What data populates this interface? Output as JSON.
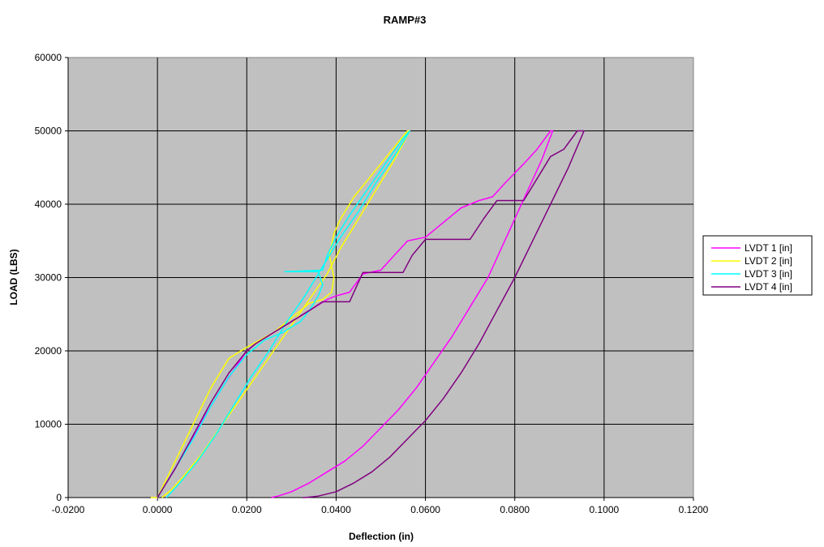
{
  "chart_data": {
    "type": "line",
    "title": "RAMP#3",
    "xlabel": "Deflection (in)",
    "ylabel": "LOAD (LBS)",
    "xlim": [
      -0.02,
      0.12
    ],
    "ylim": [
      0,
      60000
    ],
    "x_ticks": [
      "-0.0200",
      "0.0000",
      "0.0200",
      "0.0400",
      "0.0600",
      "0.0800",
      "0.1000",
      "0.1200"
    ],
    "x_tick_values": [
      -0.02,
      0,
      0.02,
      0.04,
      0.06,
      0.08,
      0.1,
      0.12
    ],
    "y_ticks": [
      "0",
      "10000",
      "20000",
      "30000",
      "40000",
      "50000",
      "60000"
    ],
    "y_tick_values": [
      0,
      10000,
      20000,
      30000,
      40000,
      50000,
      60000
    ],
    "grid": true,
    "plot_background": "#c0c0c0",
    "legend_position": "right",
    "series": [
      {
        "name": "LVDT 1 [in]",
        "color": "#ff00ff",
        "x": [
          0.0,
          0.005,
          0.01,
          0.015,
          0.02,
          0.022,
          0.026,
          0.03,
          0.034,
          0.038,
          0.04,
          0.043,
          0.046,
          0.05,
          0.053,
          0.056,
          0.06,
          0.064,
          0.068,
          0.072,
          0.075,
          0.078,
          0.082,
          0.085,
          0.088,
          0.0885,
          0.086,
          0.083,
          0.08,
          0.077,
          0.074,
          0.07,
          0.066,
          0.062,
          0.058,
          0.054,
          0.05,
          0.046,
          0.042,
          0.038,
          0.034,
          0.03,
          0.027,
          0.0255
        ],
        "y": [
          0,
          5000,
          10500,
          15500,
          20000,
          21000,
          22500,
          24000,
          25500,
          27000,
          27500,
          28000,
          30500,
          31000,
          33000,
          35000,
          35500,
          37500,
          39500,
          40500,
          41000,
          43000,
          45500,
          47500,
          50000,
          50000,
          46000,
          42000,
          38000,
          34000,
          30000,
          26000,
          22000,
          18500,
          15000,
          12000,
          9500,
          7000,
          5000,
          3500,
          2000,
          800,
          200,
          0
        ]
      },
      {
        "name": "LVDT 2 [in]",
        "color": "#ffff00",
        "x": [
          -0.0015,
          0.0,
          0.004,
          0.008,
          0.012,
          0.016,
          0.02,
          0.023,
          0.026,
          0.03,
          0.034,
          0.037,
          0.039,
          0.0395,
          0.039,
          0.0385,
          0.0395,
          0.041,
          0.044,
          0.048,
          0.052,
          0.056,
          0.0565,
          0.053,
          0.049,
          0.045,
          0.041,
          0.038,
          0.034,
          0.03,
          0.026,
          0.022,
          0.018,
          0.014,
          0.01,
          0.006,
          0.003,
          0.001
        ],
        "y": [
          0,
          0,
          5000,
          10000,
          15000,
          19000,
          20500,
          21500,
          22500,
          24500,
          26500,
          27000,
          28000,
          30000,
          31500,
          33000,
          36000,
          38000,
          41000,
          44000,
          47000,
          50000,
          50000,
          46000,
          42000,
          38000,
          34000,
          30500,
          27000,
          23500,
          20000,
          16500,
          13000,
          9500,
          6000,
          3000,
          1000,
          0
        ]
      },
      {
        "name": "LVDT 3 [in]",
        "color": "#00ffff",
        "x": [
          0.0,
          0.004,
          0.008,
          0.012,
          0.016,
          0.02,
          0.024,
          0.028,
          0.032,
          0.034,
          0.036,
          0.037,
          0.036,
          0.0285,
          0.037,
          0.038,
          0.04,
          0.043,
          0.047,
          0.051,
          0.055,
          0.0565,
          0.053,
          0.049,
          0.045,
          0.041,
          0.037,
          0.033,
          0.029,
          0.025,
          0.021,
          0.017,
          0.013,
          0.009,
          0.005,
          0.002
        ],
        "y": [
          0,
          4000,
          8000,
          12500,
          16500,
          19500,
          21500,
          22500,
          24000,
          25500,
          27500,
          29000,
          30800,
          30800,
          31000,
          33000,
          35500,
          38500,
          42000,
          45500,
          49000,
          50000,
          46500,
          43000,
          39000,
          35500,
          31500,
          27500,
          24000,
          20000,
          16500,
          12500,
          8500,
          5000,
          2000,
          0
        ]
      },
      {
        "name": "LVDT 4 [in]",
        "color": "#800080",
        "x": [
          0.0,
          0.004,
          0.008,
          0.012,
          0.016,
          0.02,
          0.022,
          0.026,
          0.03,
          0.034,
          0.037,
          0.04,
          0.043,
          0.046,
          0.05,
          0.055,
          0.057,
          0.06,
          0.065,
          0.07,
          0.073,
          0.076,
          0.08,
          0.082,
          0.085,
          0.088,
          0.091,
          0.094,
          0.0955,
          0.092,
          0.088,
          0.084,
          0.08,
          0.076,
          0.072,
          0.068,
          0.064,
          0.06,
          0.056,
          0.052,
          0.048,
          0.044,
          0.04,
          0.036,
          0.033,
          0.0325
        ],
        "y": [
          0,
          4000,
          8500,
          13000,
          17000,
          20000,
          21000,
          22500,
          24000,
          25500,
          26700,
          26700,
          26700,
          30700,
          30700,
          30700,
          33000,
          35200,
          35200,
          35200,
          38000,
          40500,
          40500,
          40500,
          43500,
          46500,
          47500,
          50000,
          50000,
          45000,
          40000,
          35000,
          30000,
          25500,
          21000,
          17000,
          13500,
          10500,
          8000,
          5500,
          3500,
          2000,
          800,
          200,
          0,
          0
        ]
      }
    ]
  }
}
